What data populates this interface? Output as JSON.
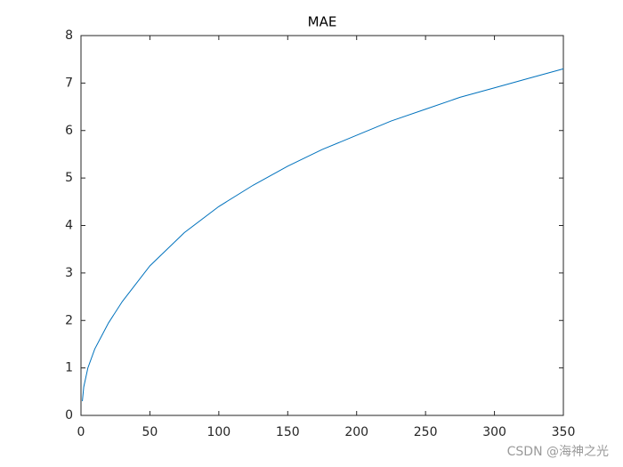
{
  "chart_data": {
    "type": "line",
    "title": "MAE",
    "x": [
      1,
      2,
      5,
      10,
      20,
      30,
      50,
      75,
      100,
      125,
      150,
      175,
      200,
      225,
      250,
      275,
      300,
      325,
      350
    ],
    "series": [
      {
        "color": "#0072bd",
        "values": [
          0.3,
          0.6,
          1.0,
          1.4,
          1.95,
          2.4,
          3.15,
          3.85,
          4.4,
          4.85,
          5.25,
          5.6,
          5.9,
          6.2,
          6.45,
          6.7,
          6.9,
          7.1,
          7.3
        ]
      }
    ],
    "xlim": [
      0,
      350
    ],
    "xticks": [
      0,
      50,
      100,
      150,
      200,
      250,
      300,
      350
    ],
    "ylim": [
      0,
      8
    ],
    "yticks": [
      0,
      1,
      2,
      3,
      4,
      5,
      6,
      7,
      8
    ],
    "grid": false
  },
  "watermark": "CSDN @海神之光"
}
